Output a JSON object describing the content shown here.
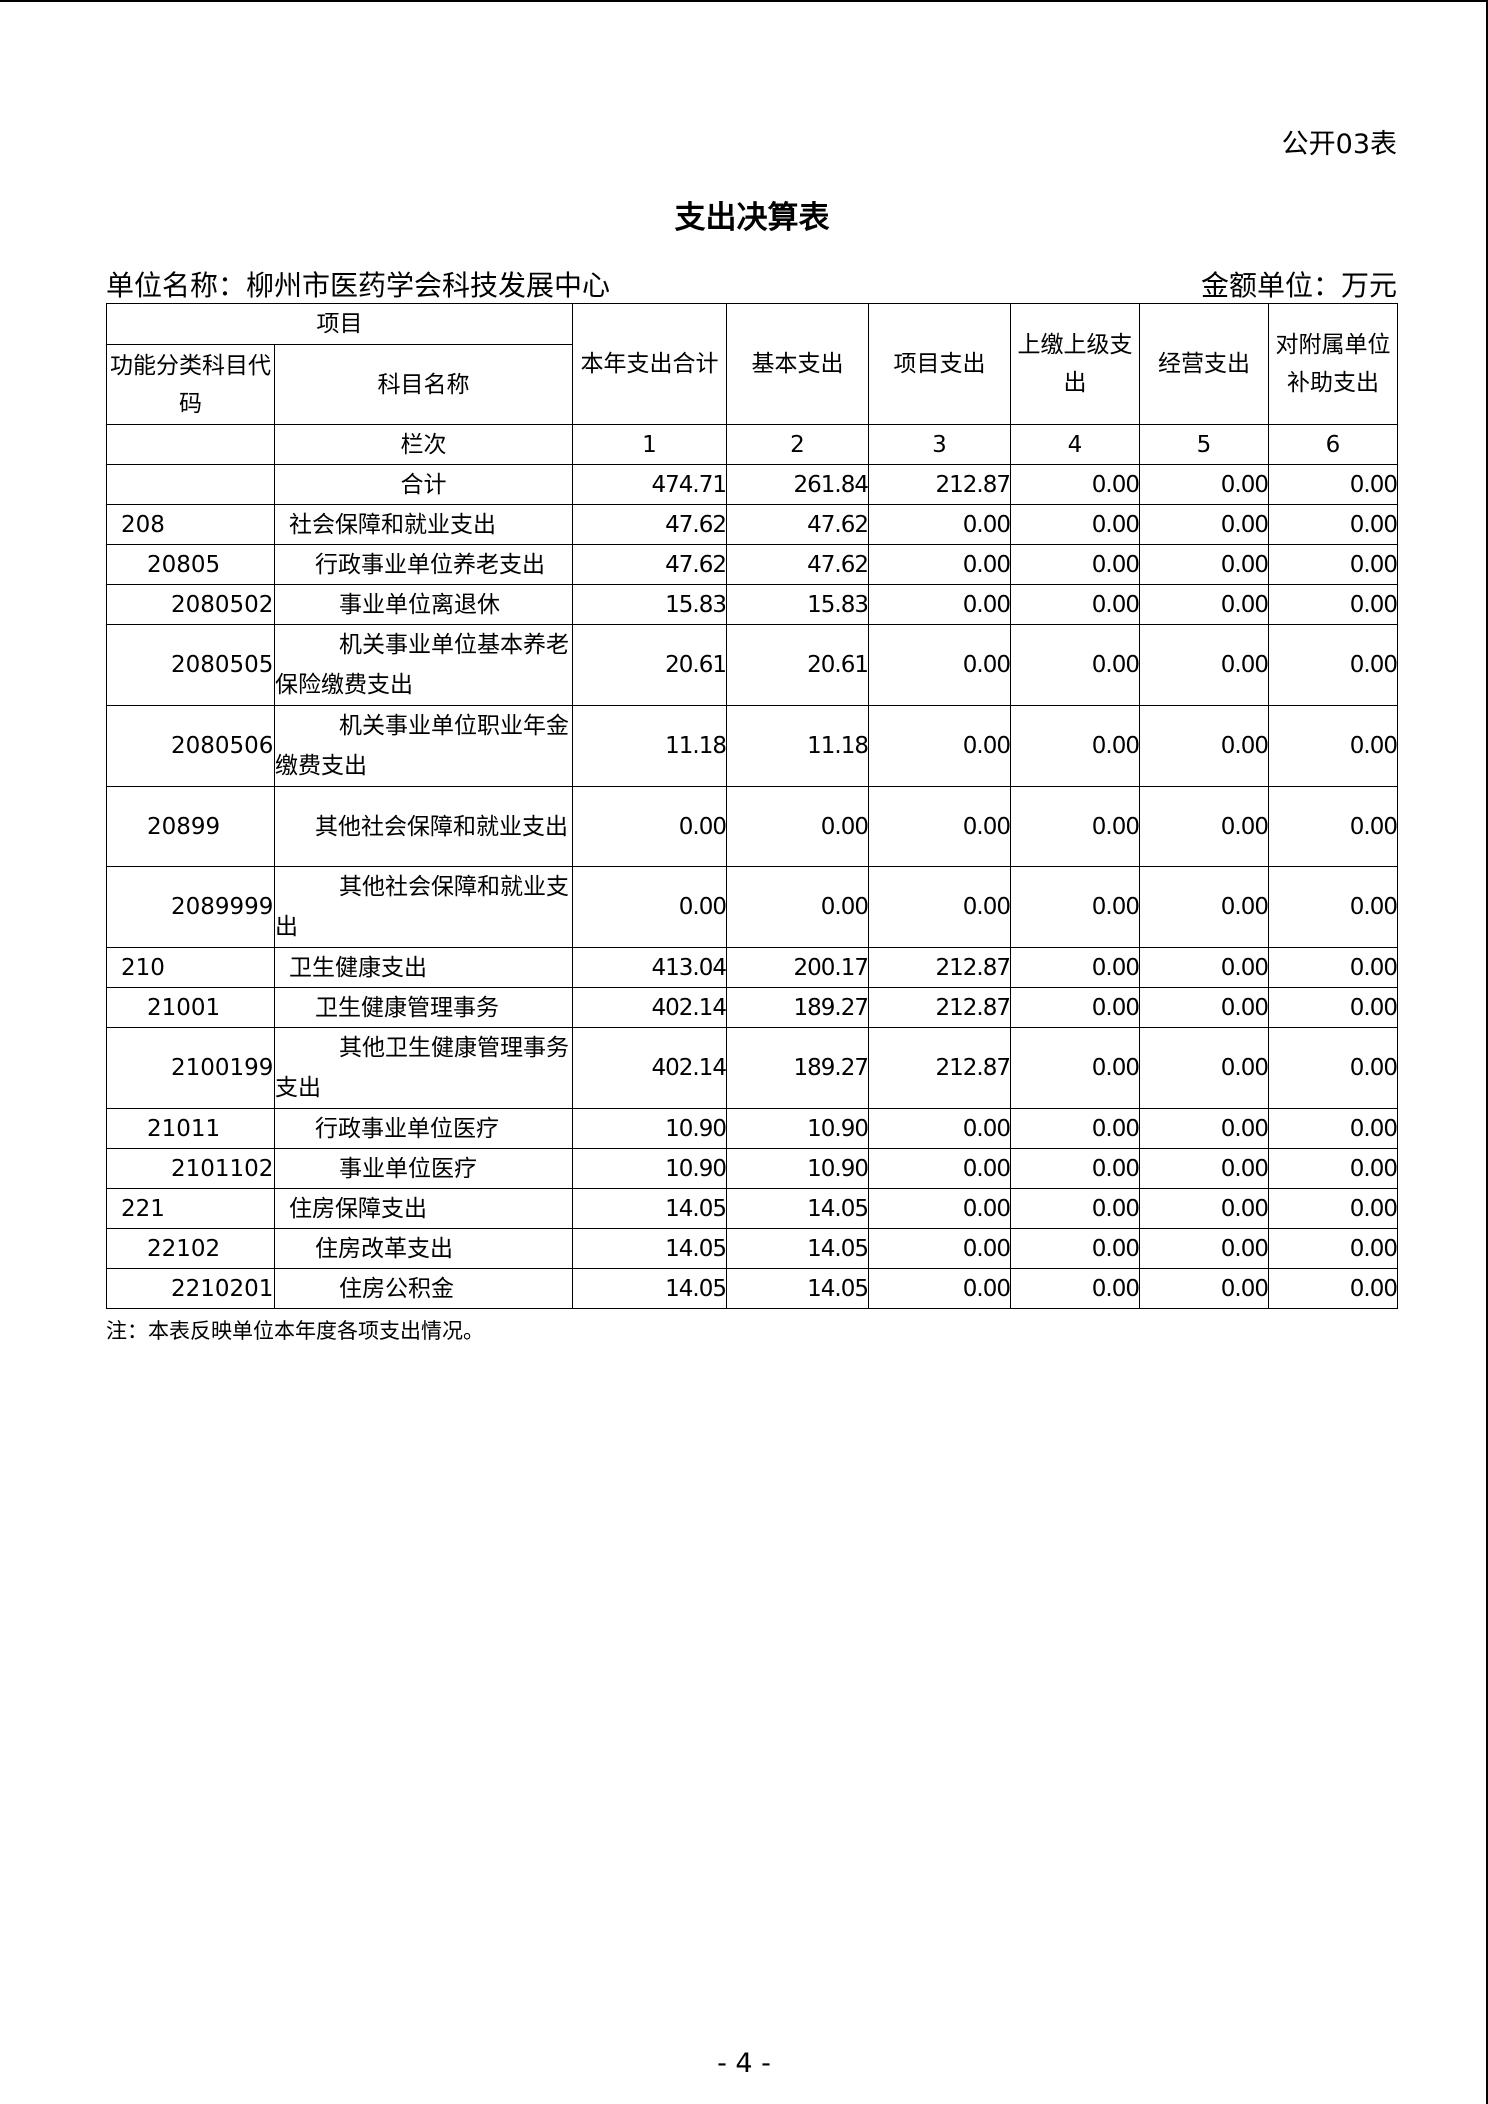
{
  "form_no": "公开03表",
  "title": "支出决算表",
  "unit_name": "单位名称：柳州市医药学会科技发展中心",
  "money_unit": "金额单位：万元",
  "header": {
    "item": "项目",
    "code": "功能分类科目代码",
    "name": "科目名称",
    "columns": [
      "本年支出合计",
      "基本支出",
      "项目支出",
      "上缴上级支出",
      "经营支出",
      "对附属单位补助支出"
    ],
    "row_label": "栏次",
    "column_numbers": [
      "1",
      "2",
      "3",
      "4",
      "5",
      "6"
    ]
  },
  "rows": [
    {
      "code": "",
      "name": "合计",
      "level": 0,
      "values": [
        "474.71",
        "261.84",
        "212.87",
        "0.00",
        "0.00",
        "0.00"
      ]
    },
    {
      "code": "208",
      "name": "社会保障和就业支出",
      "level": 1,
      "values": [
        "47.62",
        "47.62",
        "0.00",
        "0.00",
        "0.00",
        "0.00"
      ]
    },
    {
      "code": "20805",
      "name": "行政事业单位养老支出",
      "level": 2,
      "values": [
        "47.62",
        "47.62",
        "0.00",
        "0.00",
        "0.00",
        "0.00"
      ]
    },
    {
      "code": "2080502",
      "name": "事业单位离退休",
      "level": 3,
      "values": [
        "15.83",
        "15.83",
        "0.00",
        "0.00",
        "0.00",
        "0.00"
      ]
    },
    {
      "code": "2080505",
      "name": "机关事业单位基本养老保险缴费支出",
      "level": 3,
      "values": [
        "20.61",
        "20.61",
        "0.00",
        "0.00",
        "0.00",
        "0.00"
      ]
    },
    {
      "code": "2080506",
      "name": "机关事业单位职业年金缴费支出",
      "level": 3,
      "values": [
        "11.18",
        "11.18",
        "0.00",
        "0.00",
        "0.00",
        "0.00"
      ]
    },
    {
      "code": "20899",
      "name": "其他社会保障和就业支出",
      "level": 2,
      "values": [
        "0.00",
        "0.00",
        "0.00",
        "0.00",
        "0.00",
        "0.00"
      ]
    },
    {
      "code": "2089999",
      "name": "其他社会保障和就业支出",
      "level": 3,
      "values": [
        "0.00",
        "0.00",
        "0.00",
        "0.00",
        "0.00",
        "0.00"
      ]
    },
    {
      "code": "210",
      "name": "卫生健康支出",
      "level": 1,
      "values": [
        "413.04",
        "200.17",
        "212.87",
        "0.00",
        "0.00",
        "0.00"
      ]
    },
    {
      "code": "21001",
      "name": "卫生健康管理事务",
      "level": 2,
      "values": [
        "402.14",
        "189.27",
        "212.87",
        "0.00",
        "0.00",
        "0.00"
      ]
    },
    {
      "code": "2100199",
      "name": "其他卫生健康管理事务支出",
      "level": 3,
      "values": [
        "402.14",
        "189.27",
        "212.87",
        "0.00",
        "0.00",
        "0.00"
      ]
    },
    {
      "code": "21011",
      "name": "行政事业单位医疗",
      "level": 2,
      "values": [
        "10.90",
        "10.90",
        "0.00",
        "0.00",
        "0.00",
        "0.00"
      ]
    },
    {
      "code": "2101102",
      "name": "事业单位医疗",
      "level": 3,
      "values": [
        "10.90",
        "10.90",
        "0.00",
        "0.00",
        "0.00",
        "0.00"
      ]
    },
    {
      "code": "221",
      "name": "住房保障支出",
      "level": 1,
      "values": [
        "14.05",
        "14.05",
        "0.00",
        "0.00",
        "0.00",
        "0.00"
      ]
    },
    {
      "code": "22102",
      "name": "住房改革支出",
      "level": 2,
      "values": [
        "14.05",
        "14.05",
        "0.00",
        "0.00",
        "0.00",
        "0.00"
      ]
    },
    {
      "code": "2210201",
      "name": "住房公积金",
      "level": 3,
      "values": [
        "14.05",
        "14.05",
        "0.00",
        "0.00",
        "0.00",
        "0.00"
      ]
    }
  ],
  "note": "注：本表反映单位本年度各项支出情况。",
  "page_number": "- 4 -"
}
